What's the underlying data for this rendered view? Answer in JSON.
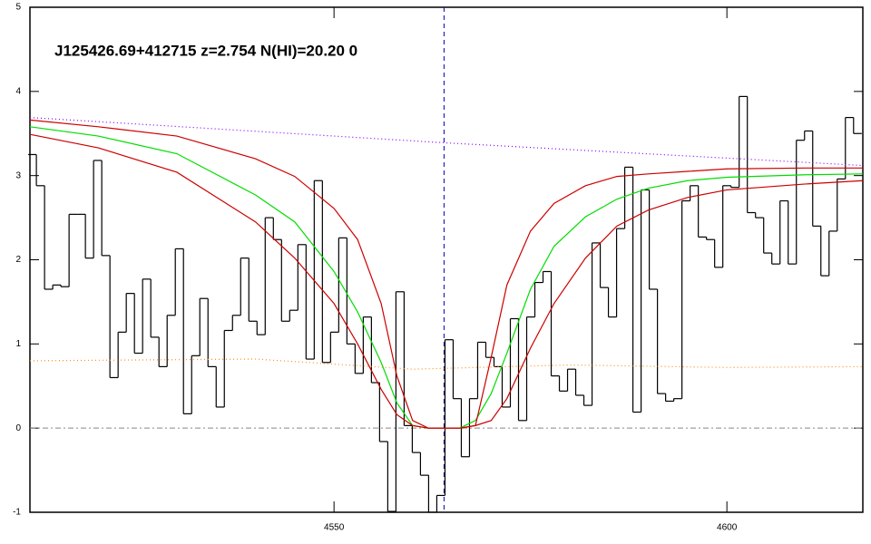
{
  "chart_data": {
    "type": "spectrum",
    "title": "J125426.69+412715 z=2.754 N(HI)=20.20 0",
    "xlim": [
      4511.3,
      4617.3
    ],
    "ylim": [
      -1,
      5
    ],
    "xticks": [
      4550,
      4600
    ],
    "yticks": [
      -1,
      0,
      1,
      2,
      3,
      4,
      5
    ],
    "zero_line": true,
    "vline_x": 4564,
    "vline_color": "#0000aa",
    "series": [
      {
        "style": "step",
        "color": "#000000",
        "x": [
          4511.6,
          4512.64,
          4513.68,
          4514.72,
          4515.76,
          4516.8,
          4517.84,
          4518.88,
          4519.92,
          4520.96,
          4522.0,
          4523.04,
          4524.08,
          4525.12,
          4526.16,
          4527.2,
          4528.24,
          4529.28,
          4530.32,
          4531.36,
          4532.4,
          4533.44,
          4534.48,
          4535.52,
          4536.56,
          4537.6,
          4538.64,
          4539.68,
          4540.72,
          4541.76,
          4542.8,
          4543.84,
          4544.88,
          4545.92,
          4546.96,
          4548.0,
          4549.04,
          4550.08,
          4551.12,
          4552.16,
          4553.2,
          4554.24,
          4555.28,
          4556.32,
          4557.36,
          4558.4,
          4559.44,
          4560.48,
          4561.52,
          4562.56,
          4563.6,
          4564.64,
          4565.68,
          4566.72,
          4567.76,
          4568.8,
          4569.84,
          4570.88,
          4571.92,
          4572.96,
          4574.0,
          4575.04,
          4576.08,
          4577.12,
          4578.16,
          4579.2,
          4580.24,
          4581.28,
          4582.32,
          4583.36,
          4584.4,
          4585.44,
          4586.48,
          4587.52,
          4588.56,
          4589.6,
          4590.64,
          4591.68,
          4592.72,
          4593.76,
          4594.8,
          4595.84,
          4596.88,
          4597.92,
          4598.96,
          4600.0,
          4601.04,
          4602.08,
          4603.12,
          4604.16,
          4605.2,
          4606.24,
          4607.28,
          4608.32,
          4609.36,
          4610.4,
          4611.44,
          4612.48,
          4613.52,
          4614.56,
          4615.6,
          4616.64
        ],
        "values": [
          3.25,
          2.88,
          1.65,
          1.7,
          1.68,
          2.54,
          2.54,
          2.02,
          3.18,
          2.05,
          0.6,
          1.14,
          1.6,
          0.89,
          1.77,
          1.08,
          0.73,
          1.34,
          2.13,
          0.17,
          0.86,
          1.54,
          0.73,
          0.25,
          1.16,
          1.34,
          2.02,
          1.27,
          1.11,
          2.5,
          2.24,
          1.27,
          1.4,
          2.18,
          0.82,
          2.94,
          0.78,
          1.14,
          2.26,
          1.0,
          0.65,
          1.32,
          0.54,
          -0.16,
          -0.99,
          1.62,
          0.03,
          -0.29,
          -0.56,
          -1.0,
          -0.8,
          1.05,
          0.35,
          -0.34,
          0.35,
          1.02,
          0.84,
          0.73,
          0.25,
          1.3,
          0.09,
          1.32,
          1.73,
          1.86,
          0.62,
          0.44,
          0.7,
          0.39,
          0.27,
          2.2,
          1.67,
          1.32,
          2.37,
          3.1,
          0.19,
          2.83,
          1.65,
          0.41,
          0.32,
          0.35,
          2.7,
          2.88,
          2.27,
          2.24,
          1.91,
          2.88,
          2.86,
          3.94,
          2.56,
          2.5,
          2.08,
          1.95,
          2.7,
          1.95,
          3.42,
          3.53,
          2.4,
          1.81,
          2.34,
          2.96,
          3.69,
          3.5
        ]
      },
      {
        "style": "line",
        "color": "#00dd00",
        "x": [
          4511.3,
          4520,
          4530,
          4540,
          4545,
          4550,
          4553,
          4556,
          4558,
          4560,
          4562,
          4564,
          4566,
          4568,
          4570,
          4572,
          4575,
          4578,
          4582,
          4586,
          4590,
          4595,
          4600,
          4610,
          4617.3
        ],
        "values": [
          3.58,
          3.47,
          3.26,
          2.77,
          2.45,
          1.86,
          1.38,
          0.78,
          0.3,
          0.03,
          0,
          0,
          0,
          0.09,
          0.41,
          0.89,
          1.65,
          2.16,
          2.51,
          2.72,
          2.85,
          2.94,
          2.98,
          3.01,
          3.02
        ]
      },
      {
        "style": "line",
        "color": "#cc0000",
        "x": [
          4511.3,
          4520,
          4530,
          4540,
          4545,
          4550,
          4553,
          4556,
          4558,
          4560,
          4562,
          4564,
          4566,
          4568,
          4570,
          4572,
          4575,
          4578,
          4582,
          4586,
          4590,
          4595,
          4600,
          4610,
          4617.3
        ],
        "values": [
          3.66,
          3.58,
          3.47,
          3.2,
          2.99,
          2.61,
          2.24,
          1.48,
          0.62,
          0.09,
          0,
          0,
          0,
          0.03,
          0.84,
          1.7,
          2.34,
          2.67,
          2.88,
          2.99,
          3.02,
          3.05,
          3.08,
          3.09,
          3.09
        ]
      },
      {
        "style": "line",
        "color": "#cc0000",
        "x": [
          4511.3,
          4520,
          4530,
          4540,
          4545,
          4550,
          4553,
          4556,
          4558,
          4560,
          4562,
          4564,
          4566,
          4568,
          4570,
          4572,
          4575,
          4578,
          4582,
          4586,
          4590,
          4595,
          4600,
          4610,
          4617.3
        ],
        "values": [
          3.49,
          3.33,
          3.04,
          2.45,
          2.02,
          1.48,
          1.0,
          0.46,
          0.16,
          0.03,
          0,
          0,
          0,
          0.03,
          0.09,
          0.35,
          0.95,
          1.48,
          2.02,
          2.4,
          2.59,
          2.74,
          2.83,
          2.9,
          2.94
        ]
      },
      {
        "style": "dotted",
        "color": "#8800ff",
        "x": [
          4511.3,
          4564,
          4617.3
        ],
        "values": [
          3.69,
          3.39,
          3.12
        ]
      },
      {
        "style": "dotted",
        "color": "#ff8c1a",
        "x": [
          4511.3,
          4540,
          4560,
          4580,
          4600,
          4617.3
        ],
        "values": [
          0.8,
          0.82,
          0.7,
          0.75,
          0.72,
          0.73
        ]
      }
    ]
  }
}
